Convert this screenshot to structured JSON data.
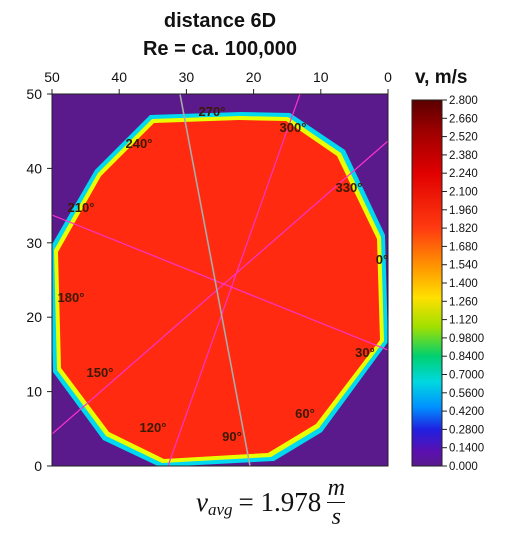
{
  "chart_data": {
    "type": "heatmap",
    "title": "distance 6D",
    "subtitle": "Re = ca. 100,000",
    "x_ticks": [
      50,
      40,
      30,
      20,
      10,
      0
    ],
    "y_ticks": [
      0,
      10,
      20,
      30,
      40,
      50
    ],
    "xlim": [
      50,
      0
    ],
    "ylim": [
      0,
      50
    ],
    "angle_labels": [
      "0°",
      "30°",
      "60°",
      "90°",
      "120°",
      "150°",
      "180°",
      "210°",
      "240°",
      "270°",
      "300°",
      "330°"
    ],
    "colorbar": {
      "label": "v, m/s",
      "min": 0.0,
      "max": 2.8,
      "ticks": [
        "2.800",
        "2.660",
        "2.520",
        "2.380",
        "2.240",
        "2.100",
        "1.960",
        "1.820",
        "1.680",
        "1.540",
        "1.400",
        "1.260",
        "1.120",
        "0.9800",
        "0.8400",
        "0.7000",
        "0.5600",
        "0.4200",
        "0.2800",
        "0.1400",
        "0.000"
      ]
    },
    "core_velocity": 2.0,
    "background_velocity": 0.0,
    "colors": {
      "background": "#5a1a8c",
      "core": "#ff2a10",
      "diameter_lines": "#ff33cc",
      "grey_line": "#aaaaaa"
    }
  },
  "formula": {
    "symbol": "v",
    "subscript": "avg",
    "equals_value": "= 1.978",
    "unit_numerator": "m",
    "unit_denominator": "s"
  }
}
